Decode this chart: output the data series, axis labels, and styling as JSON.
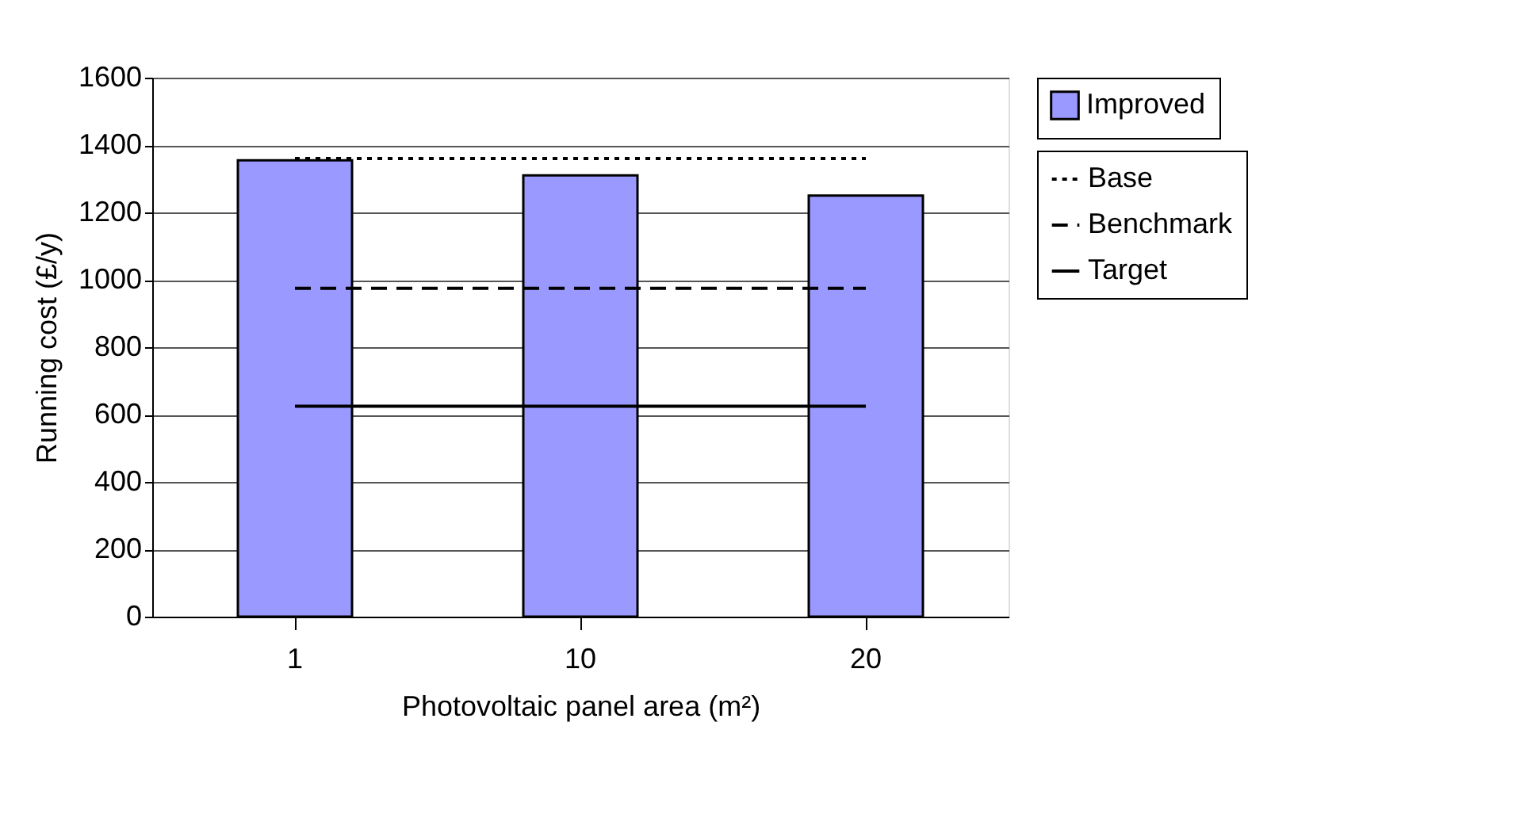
{
  "chart_data": {
    "type": "bar",
    "xlabel": "Photovoltaic panel area (m²)",
    "ylabel": "Running cost (£/y)",
    "categories": [
      "1",
      "10",
      "20"
    ],
    "series": [
      {
        "name": "Improved",
        "color": "#9999ff",
        "values": [
          1355,
          1310,
          1250
        ]
      },
      {
        "name": "Base",
        "type": "line",
        "color": "#000000",
        "line_style": "dotted",
        "values": [
          1360,
          1360,
          1360
        ]
      },
      {
        "name": "Benchmark",
        "type": "line",
        "color": "#000000",
        "line_style": "dashed",
        "values": [
          975,
          975,
          975
        ]
      },
      {
        "name": "Target",
        "type": "line",
        "color": "#000000",
        "line_style": "solid",
        "values": [
          625,
          625,
          625
        ]
      }
    ],
    "ylim": [
      0,
      1600
    ],
    "yticks": [
      0,
      200,
      400,
      600,
      800,
      1000,
      1200,
      1400,
      1600
    ],
    "grid": "y",
    "legend": "right"
  }
}
